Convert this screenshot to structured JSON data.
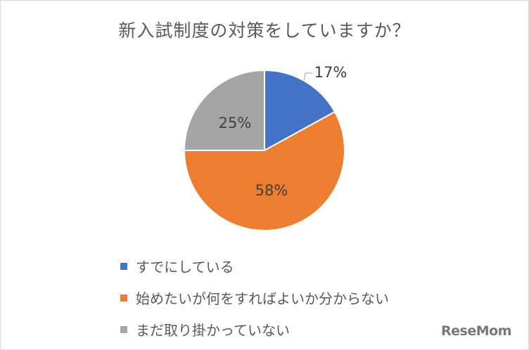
{
  "chart_data": {
    "type": "pie",
    "title": "新入試制度の対策をしていますか？",
    "slices": [
      {
        "label": "すでにしている",
        "value": 17,
        "display": "17%",
        "color": "#4472c4"
      },
      {
        "label": "始めたいが何をすればよいか分からない",
        "value": 58,
        "display": "58%",
        "color": "#ed7d31"
      },
      {
        "label": "まだ取り掛かっていない",
        "value": 25,
        "display": "25%",
        "color": "#a5a5a5"
      }
    ],
    "legend_position": "bottom-left",
    "start_angle": "12 o'clock, clockwise"
  },
  "watermark": "ReseMom"
}
